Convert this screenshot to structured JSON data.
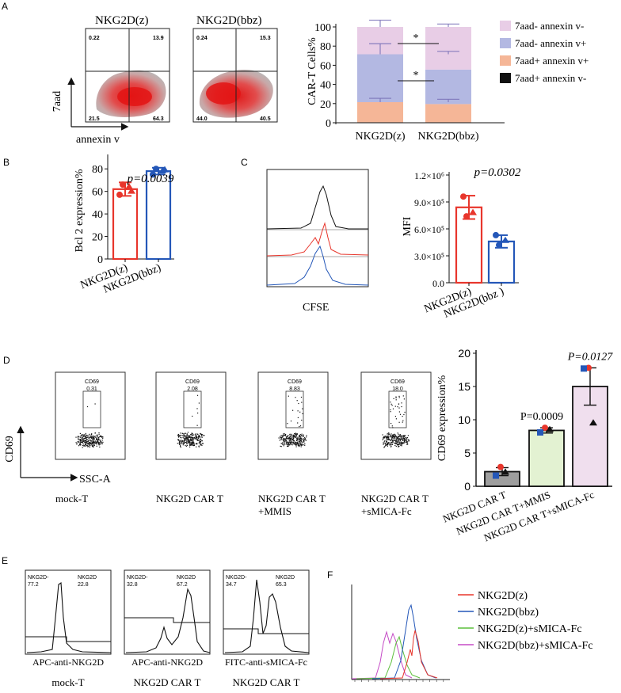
{
  "panels": {
    "A": {
      "label": "A",
      "flow_titles": [
        "NKG2D(z)",
        "NKG2D(bbz)"
      ],
      "flow_quadrants": [
        {
          "ul": "0.22",
          "ur": "13.9",
          "ll": "21.5",
          "lr": "64.3"
        },
        {
          "ul": "0.24",
          "ur": "15.3",
          "ll": "44.0",
          "lr": "40.5"
        }
      ],
      "y_axis_label": "7aad",
      "x_axis_label": "annexin v"
    },
    "B": {
      "label": "B"
    },
    "C": {
      "label": "C",
      "cfse_label": "CFSE"
    },
    "D": {
      "label": "D",
      "y_axis_label": "CD69",
      "x_axis_label": "SSC-A",
      "gate_label": "CD69",
      "gate_values": [
        "0.31",
        "2.08",
        "8.83",
        "18.0"
      ],
      "sample_labels": [
        [
          "mock-T"
        ],
        [
          "NKG2D CAR T"
        ],
        [
          "NKG2D CAR T",
          "+MMIS"
        ],
        [
          "NKG2D CAR T",
          "+sMICA-Fc"
        ]
      ]
    },
    "E": {
      "label": "E",
      "plots": [
        {
          "neg_label": "NKG2D-",
          "neg_value": "77.2",
          "pos_label": "NKG2D",
          "pos_value": "22.8",
          "x_label": "APC-anti-NKG2D",
          "sample": "mock-T"
        },
        {
          "neg_label": "NKG2D-",
          "neg_value": "32.8",
          "pos_label": "NKG2D",
          "pos_value": "67.2",
          "x_label": "APC-anti-NKG2D",
          "sample": "NKG2D CAR T"
        },
        {
          "neg_label": "NKG2D-",
          "neg_value": "34.7",
          "pos_label": "NKG2D",
          "pos_value": "65.3",
          "x_label": "FITC-anti-sMICA-Fc",
          "sample": "NKG2D CAR T"
        }
      ]
    },
    "F": {
      "label": "F",
      "legend": [
        {
          "name": "NKG2D(z)",
          "color": "#e8362c"
        },
        {
          "name": "NKG2D(bbz)",
          "color": "#2457b8"
        },
        {
          "name": "NKG2D(z)+sMICA-Fc",
          "color": "#5cbf3c"
        },
        {
          "name": "NKG2D(bbz)+sMICA-Fc",
          "color": "#c54cc6"
        }
      ]
    }
  },
  "chart_data": [
    {
      "id": "A_stacked",
      "type": "bar",
      "stacked": true,
      "ylabel": "CAR-T Cells%",
      "ylim": [
        0,
        100
      ],
      "yticks": [
        0,
        20,
        40,
        60,
        80,
        100
      ],
      "categories": [
        "NKG2D(z)",
        "NKG2D(bbz)"
      ],
      "series": [
        {
          "name": "7aad+ annexin v-",
          "color": "#111111",
          "values": [
            0.5,
            0.5
          ]
        },
        {
          "name": "7aad+ annexin v+",
          "color": "#f5b697",
          "values": [
            21,
            19
          ]
        },
        {
          "name": "7aad- annexin v+",
          "color": "#b3b8e2",
          "values": [
            50,
            36
          ]
        },
        {
          "name": "7aad- annexin v-",
          "color": "#e8cde6",
          "values": [
            28.5,
            44.5
          ]
        }
      ],
      "errors": [
        {
          "at": 21.5,
          "err": [
            4,
            3
          ]
        },
        {
          "at": 71.5,
          "err": [
            11,
            3
          ]
        },
        {
          "at": 100,
          "err": [
            7,
            3
          ]
        }
      ],
      "annotations": [
        "*",
        "*"
      ]
    },
    {
      "id": "B_bcl2",
      "type": "bar",
      "ylabel": "Bcl 2 expression%",
      "ylim": [
        0,
        90
      ],
      "yticks": [
        0,
        20,
        40,
        60,
        80
      ],
      "categories": [
        "NKG2D(z)",
        "NKG2D(bbz)"
      ],
      "values": [
        62,
        78
      ],
      "errors": [
        6,
        3
      ],
      "colors": [
        "#e8362c",
        "#2457b8"
      ],
      "points": [
        [
          57,
          64,
          66,
          60
        ],
        [
          75,
          78,
          80,
          79
        ]
      ],
      "annotation": "p=0.0039"
    },
    {
      "id": "C_mfi",
      "type": "bar",
      "ylabel": "MFI",
      "ylim": [
        0,
        1200000
      ],
      "yticks": [
        0,
        300000,
        600000,
        900000,
        1200000
      ],
      "ytick_labels": [
        "0.0",
        "3.0×10⁵",
        "6.0×10⁵",
        "9.0×10⁵",
        "1.2×10⁶"
      ],
      "categories": [
        "NKG2D(z)",
        "NKG2D(bbz )"
      ],
      "values": [
        840000,
        460000
      ],
      "errors": [
        130000,
        70000
      ],
      "colors": [
        "#e8362c",
        "#2457b8"
      ],
      "points": [
        [
          960000,
          780000,
          740000
        ],
        [
          530000,
          470000,
          420000
        ]
      ],
      "annotation": "p=0.0302"
    },
    {
      "id": "D_cd69",
      "type": "bar",
      "ylabel": "CD69 expression%",
      "ylim": [
        0,
        20
      ],
      "yticks": [
        0,
        5,
        10,
        15,
        20
      ],
      "categories": [
        "NKG2D CAR T",
        "NKG2D CAR T+MMIS",
        "NKG2D CAR T+sMICA-Fc"
      ],
      "values": [
        2.2,
        8.4,
        15.0
      ],
      "errors": [
        0.6,
        0.4,
        2.8
      ],
      "colors": [
        "#9e9e9e",
        "#e3f2d2",
        "#f0dfee"
      ],
      "annotations": [
        "",
        "P=0.0009",
        "P=0.0127"
      ],
      "points": [
        [
          2.9,
          1.6,
          2.1
        ],
        [
          8.8,
          8.1,
          8.5
        ],
        [
          17.8,
          17.7,
          9.5
        ]
      ]
    }
  ]
}
